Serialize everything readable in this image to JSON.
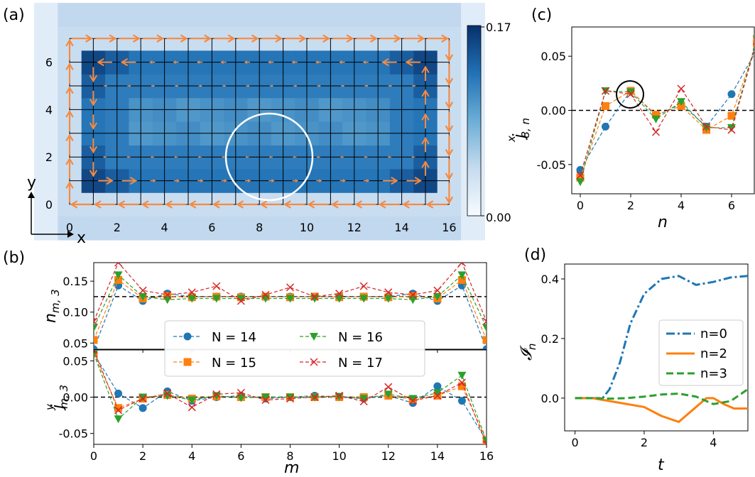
{
  "panel_labels": {
    "a": "(a)",
    "b": "(b)",
    "c": "(c)",
    "d": "(d)"
  },
  "colors": {
    "blue": "#1f77b4",
    "orange": "#ff7f0e",
    "green": "#2ca02c",
    "red": "#d62728",
    "arrow": "#f58a42"
  },
  "chart_data": [
    {
      "panel": "a",
      "type": "heatmap",
      "axis_arrow_labels": {
        "x": "x",
        "y": "y"
      },
      "xticks": [
        "0",
        "2",
        "4",
        "6",
        "8",
        "10",
        "12",
        "14",
        "16"
      ],
      "yticks": [
        "0",
        "2",
        "4",
        "6"
      ],
      "colorbar": {
        "max_label": "0.17",
        "min_label": "0.00",
        "vmin": 0.0,
        "vmax": 0.17,
        "colors": [
          "#f7fbff",
          "#c6dbef",
          "#6baed6",
          "#2171b5",
          "#08306b"
        ]
      },
      "density_levels": {
        "edge": 0.04,
        "outer_ring": 0.125,
        "corner": 0.155,
        "inner_ring": 0.12,
        "core": 0.1
      },
      "lattice": {
        "m_range": [
          0,
          16
        ],
        "n_range": [
          0,
          7
        ]
      },
      "current_circulation": "clockwise along boundary, counter-flow along inner ring",
      "highlight": "circle around m=8-9, n=1-3"
    },
    {
      "panel": "b-top",
      "type": "line",
      "ylabel": "n_{m,3}",
      "x": [
        0,
        1,
        2,
        3,
        4,
        5,
        6,
        7,
        8,
        9,
        10,
        11,
        12,
        13,
        14,
        15,
        16
      ],
      "ylim": [
        0.04,
        0.18
      ],
      "yticks": [
        "0.05",
        "0.10",
        "0.15"
      ],
      "reference_line": 0.125,
      "series": [
        {
          "name": "N = 14",
          "color": "#1f77b4",
          "marker": "circle",
          "values": [
            0.04,
            0.143,
            0.118,
            0.13,
            0.125,
            0.125,
            0.125,
            0.125,
            0.125,
            0.125,
            0.125,
            0.125,
            0.125,
            0.13,
            0.118,
            0.143,
            0.04
          ]
        },
        {
          "name": "N = 15",
          "color": "#ff7f0e",
          "marker": "square",
          "values": [
            0.055,
            0.152,
            0.122,
            0.126,
            0.124,
            0.125,
            0.124,
            0.125,
            0.124,
            0.125,
            0.124,
            0.125,
            0.124,
            0.126,
            0.122,
            0.152,
            0.055
          ]
        },
        {
          "name": "N = 16",
          "color": "#2ca02c",
          "marker": "triangle-down",
          "values": [
            0.075,
            0.16,
            0.125,
            0.12,
            0.122,
            0.122,
            0.122,
            0.122,
            0.122,
            0.122,
            0.122,
            0.122,
            0.122,
            0.12,
            0.125,
            0.16,
            0.075
          ]
        },
        {
          "name": "N = 17",
          "color": "#d62728",
          "marker": "x",
          "values": [
            0.085,
            0.18,
            0.135,
            0.128,
            0.132,
            0.142,
            0.118,
            0.128,
            0.14,
            0.125,
            0.13,
            0.142,
            0.132,
            0.128,
            0.135,
            0.18,
            0.085
          ]
        }
      ]
    },
    {
      "panel": "b-bottom",
      "type": "line",
      "ylabel": "j^y_{m,3}",
      "xlabel": "m",
      "x": [
        0,
        1,
        2,
        3,
        4,
        5,
        6,
        7,
        8,
        9,
        10,
        11,
        12,
        13,
        14,
        15,
        16
      ],
      "ylim": [
        -0.065,
        0.065
      ],
      "yticks": [
        "0.05",
        "0.00",
        "-0.05"
      ],
      "xticks": [
        "0",
        "2",
        "4",
        "6",
        "8",
        "10",
        "12",
        "14",
        "16"
      ],
      "reference_line": 0.0,
      "series": [
        {
          "name": "N = 14",
          "color": "#1f77b4",
          "marker": "circle",
          "values": [
            0.06,
            0.005,
            -0.015,
            0.008,
            -0.005,
            0.0,
            0.002,
            -0.002,
            0.0,
            0.002,
            0.0,
            -0.002,
            0.002,
            -0.008,
            0.015,
            -0.005,
            -0.06
          ]
        },
        {
          "name": "N = 15",
          "color": "#ff7f0e",
          "marker": "square",
          "values": [
            0.06,
            -0.015,
            -0.002,
            0.003,
            -0.002,
            0.001,
            0.0,
            0.0,
            0.0,
            0.0,
            0.0,
            0.0,
            0.002,
            -0.003,
            0.002,
            0.015,
            -0.06
          ]
        },
        {
          "name": "N = 16",
          "color": "#2ca02c",
          "marker": "triangle-down",
          "values": [
            0.06,
            -0.03,
            0.0,
            0.002,
            -0.004,
            0.002,
            -0.001,
            0.0,
            0.0,
            0.0,
            0.001,
            -0.002,
            0.004,
            -0.002,
            0.006,
            0.03,
            -0.06
          ]
        },
        {
          "name": "N = 17",
          "color": "#d62728",
          "marker": "x",
          "values": [
            0.065,
            -0.018,
            -0.002,
            0.005,
            -0.014,
            0.004,
            0.006,
            -0.004,
            -0.002,
            0.0,
            0.002,
            -0.006,
            0.014,
            -0.005,
            0.002,
            0.02,
            -0.065
          ]
        }
      ],
      "legend": {
        "entries": [
          "N = 14",
          "N = 16",
          "N = 15",
          "N = 17"
        ],
        "placement": "center"
      }
    },
    {
      "panel": "c",
      "type": "line",
      "ylabel": "j^x_{8,n}",
      "xlabel": "n",
      "x": [
        0,
        1,
        2,
        3,
        4,
        5,
        6,
        7
      ],
      "ylim": [
        -0.077,
        0.077
      ],
      "yticks": [
        "0.05",
        "0.00",
        "-0.05"
      ],
      "xticks": [
        "0",
        "2",
        "4",
        "6"
      ],
      "reference_line": 0.0,
      "series": [
        {
          "name": "N = 14",
          "color": "#1f77b4",
          "marker": "circle",
          "values": [
            -0.055,
            -0.015,
            0.018,
            -0.005,
            0.006,
            -0.015,
            0.015,
            0.056
          ]
        },
        {
          "name": "N = 15",
          "color": "#ff7f0e",
          "marker": "square",
          "values": [
            -0.062,
            0.004,
            0.018,
            -0.004,
            0.004,
            -0.018,
            -0.005,
            0.062
          ]
        },
        {
          "name": "N = 16",
          "color": "#2ca02c",
          "marker": "triangle-down",
          "values": [
            -0.066,
            0.018,
            0.017,
            -0.008,
            0.008,
            -0.016,
            -0.016,
            0.066
          ]
        },
        {
          "name": "N = 17",
          "color": "#d62728",
          "marker": "x",
          "values": [
            -0.06,
            0.018,
            0.015,
            -0.02,
            0.02,
            -0.015,
            -0.018,
            0.064
          ]
        }
      ],
      "highlight": "circle around n=2"
    },
    {
      "panel": "d",
      "type": "line",
      "ylabel": "I_n",
      "xlabel": "t",
      "xlim": [
        -0.3,
        5.0
      ],
      "ylim": [
        -0.11,
        0.45
      ],
      "xticks": [
        "0",
        "2",
        "4"
      ],
      "yticks": [
        "0.4",
        "0.2",
        "0.0"
      ],
      "series": [
        {
          "name": "n=0",
          "color": "#1f77b4",
          "style": "dashdot",
          "x": [
            0,
            0.5,
            0.8,
            1.0,
            1.3,
            1.6,
            2.0,
            2.5,
            3.0,
            3.5,
            4.0,
            4.5,
            5.0
          ],
          "values": [
            0,
            0,
            0,
            0.03,
            0.12,
            0.25,
            0.35,
            0.4,
            0.41,
            0.38,
            0.39,
            0.405,
            0.41
          ]
        },
        {
          "name": "n=2",
          "color": "#ff7f0e",
          "style": "solid",
          "x": [
            0,
            0.5,
            1.0,
            1.5,
            2.0,
            2.5,
            3.0,
            3.5,
            3.8,
            4.0,
            4.3,
            4.6,
            5.0
          ],
          "values": [
            0,
            0,
            -0.01,
            -0.02,
            -0.03,
            -0.06,
            -0.08,
            -0.03,
            0.0,
            0.0,
            -0.02,
            -0.035,
            -0.035
          ]
        },
        {
          "name": "n=3",
          "color": "#2ca02c",
          "style": "dashed",
          "x": [
            0,
            0.5,
            1.0,
            1.5,
            2.0,
            2.5,
            3.0,
            3.5,
            4.0,
            4.5,
            5.0
          ],
          "values": [
            0,
            0,
            -0.002,
            0.0,
            0.005,
            0.012,
            0.015,
            0.005,
            -0.02,
            -0.01,
            0.03
          ]
        }
      ],
      "legend": {
        "entries": [
          "n=0",
          "n=2",
          "n=3"
        ],
        "placement": "right"
      }
    }
  ]
}
